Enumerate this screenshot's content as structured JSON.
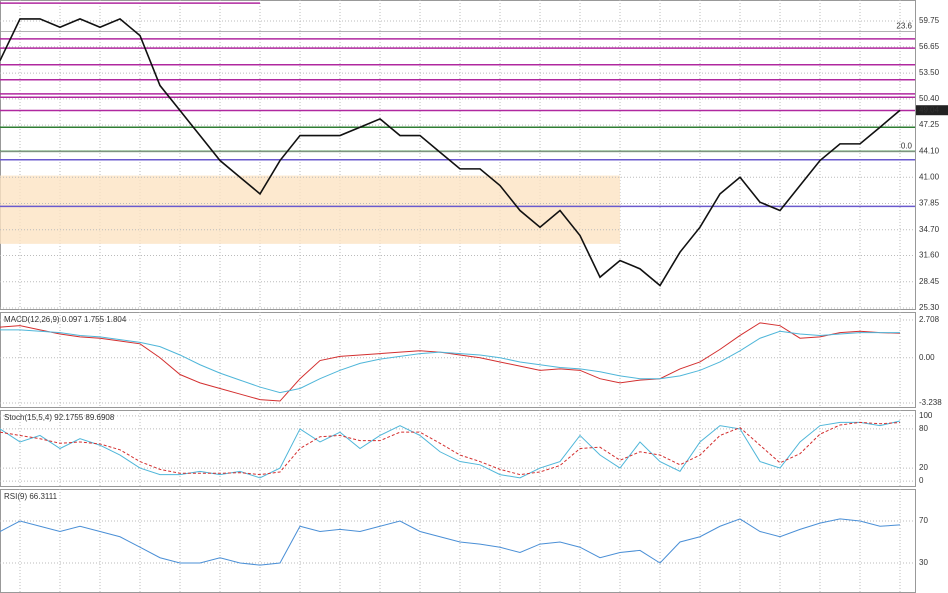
{
  "chart_data": [
    {
      "type": "line",
      "title": null,
      "series": [
        {
          "name": null,
          "color": "#111111",
          "values": [
            55,
            60,
            60,
            59,
            60,
            59,
            60,
            58,
            52,
            49,
            46,
            43,
            41,
            39,
            43,
            46,
            46,
            46,
            47,
            48,
            46,
            46,
            44,
            42,
            42,
            40,
            37,
            35,
            37,
            34,
            29,
            31,
            30,
            28,
            32,
            35,
            39,
            41,
            38,
            37,
            40,
            43,
            45,
            45,
            47,
            49.04
          ]
        }
      ],
      "ylim": [
        25.06,
        62.27
      ],
      "yticks": [
        {
          "value": 25.3,
          "label": "25.30"
        },
        28.45,
        {
          "value": 31.6,
          "label": "31.60"
        },
        {
          "value": 34.7,
          "label": "34.70"
        },
        37.85,
        {
          "value": 41.0,
          "label": "41.00"
        },
        {
          "value": 44.1,
          "label": "44.10"
        },
        47.25,
        {
          "value": 50.4,
          "label": "50.40"
        },
        {
          "value": 53.5,
          "label": "53.50"
        },
        56.65,
        59.75
      ],
      "levels": [
        {
          "value": 61.9,
          "color": "#b0289f"
        },
        {
          "value": 57.6,
          "color": "#b0289f"
        },
        {
          "value": 56.5,
          "color": "#b0289f"
        },
        {
          "value": 54.5,
          "color": "#b0289f"
        },
        {
          "value": 52.7,
          "color": "#b0289f"
        },
        {
          "value": 51.0,
          "color": "#b0289f"
        },
        {
          "value": 50.6,
          "color": "#b0289f"
        },
        {
          "value": 49.0,
          "color": "#b0289f"
        },
        {
          "value": 47.0,
          "color": "#2e7d32"
        },
        {
          "value": 44.1,
          "color": "#2e7d32"
        },
        {
          "value": 43.1,
          "color": "#6a5acd"
        },
        {
          "value": 37.5,
          "color": "#6a5acd"
        }
      ],
      "zone": [
        33.0,
        41.2
      ],
      "fib_levels": [
        {
          "value": 58.5,
          "label": "23.6"
        },
        {
          "value": 44.1,
          "label": "0.0"
        }
      ]
    },
    {
      "type": "line",
      "title": "MACD(12,26,9) 0.097 1.755 1.804",
      "series": [
        {
          "name": null,
          "color": "#d32f2f",
          "values": [
            2.2,
            2.3,
            2.0,
            1.7,
            1.5,
            1.4,
            1.2,
            1.0,
            0.0,
            -1.2,
            -1.8,
            -2.2,
            -2.6,
            -3.0,
            -3.1,
            -1.5,
            -0.2,
            0.1,
            0.2,
            0.3,
            0.4,
            0.5,
            0.4,
            0.2,
            0.0,
            -0.3,
            -0.6,
            -0.9,
            -0.8,
            -0.9,
            -1.5,
            -1.8,
            -1.6,
            -1.5,
            -0.8,
            -0.3,
            0.6,
            1.6,
            2.5,
            2.3,
            1.4,
            1.5,
            1.8,
            1.9,
            1.8,
            1.755
          ]
        },
        {
          "name": null,
          "color": "#4fb6d9",
          "values": [
            2.0,
            2.0,
            1.9,
            1.8,
            1.6,
            1.5,
            1.3,
            1.1,
            0.8,
            0.2,
            -0.5,
            -1.1,
            -1.6,
            -2.1,
            -2.5,
            -2.2,
            -1.5,
            -0.9,
            -0.4,
            -0.1,
            0.1,
            0.3,
            0.4,
            0.3,
            0.2,
            0.0,
            -0.3,
            -0.5,
            -0.7,
            -0.8,
            -1.0,
            -1.3,
            -1.5,
            -1.5,
            -1.3,
            -0.9,
            -0.3,
            0.5,
            1.4,
            1.9,
            1.7,
            1.6,
            1.7,
            1.8,
            1.8,
            1.804
          ]
        }
      ],
      "ylim": [
        -3.6,
        3.28
      ],
      "yticks": [
        -3.238,
        {
          "value": 0,
          "label": "0.00"
        },
        2.708
      ]
    },
    {
      "type": "line",
      "title": "Stoch(15,5,4) 92.1755 89.6908",
      "series": [
        {
          "name": null,
          "color": "#4fb6d9",
          "values": [
            80,
            60,
            70,
            50,
            65,
            55,
            40,
            20,
            10,
            10,
            15,
            10,
            15,
            5,
            20,
            80,
            60,
            75,
            50,
            70,
            85,
            70,
            45,
            30,
            25,
            10,
            5,
            20,
            30,
            70,
            40,
            20,
            60,
            30,
            15,
            60,
            85,
            80,
            30,
            20,
            60,
            85,
            90,
            90,
            85,
            92.1755
          ]
        },
        {
          "name": null,
          "color": "#d32f2f",
          "dashed": true,
          "values": [
            75,
            70,
            65,
            58,
            60,
            57,
            48,
            30,
            18,
            12,
            12,
            12,
            13,
            10,
            14,
            50,
            68,
            70,
            62,
            62,
            75,
            75,
            58,
            40,
            30,
            18,
            10,
            14,
            24,
            50,
            52,
            32,
            45,
            40,
            25,
            40,
            70,
            82,
            55,
            28,
            42,
            72,
            86,
            90,
            88,
            89.6908
          ]
        }
      ],
      "ylim": [
        -9,
        109
      ],
      "yticks": [
        0,
        20,
        80,
        100
      ]
    },
    {
      "type": "line",
      "title": "RSI(9) 66.3111",
      "series": [
        {
          "name": null,
          "color": "#4a8fd6",
          "values": [
            60,
            70,
            65,
            60,
            65,
            60,
            55,
            45,
            35,
            30,
            30,
            35,
            30,
            28,
            30,
            65,
            60,
            62,
            60,
            65,
            70,
            60,
            55,
            50,
            48,
            45,
            40,
            48,
            50,
            45,
            35,
            40,
            42,
            30,
            50,
            55,
            65,
            72,
            60,
            55,
            62,
            68,
            72,
            70,
            65,
            66.3111
          ]
        }
      ],
      "ylim": [
        1.4,
        100.5
      ],
      "yticks": [
        30,
        70
      ]
    }
  ]
}
